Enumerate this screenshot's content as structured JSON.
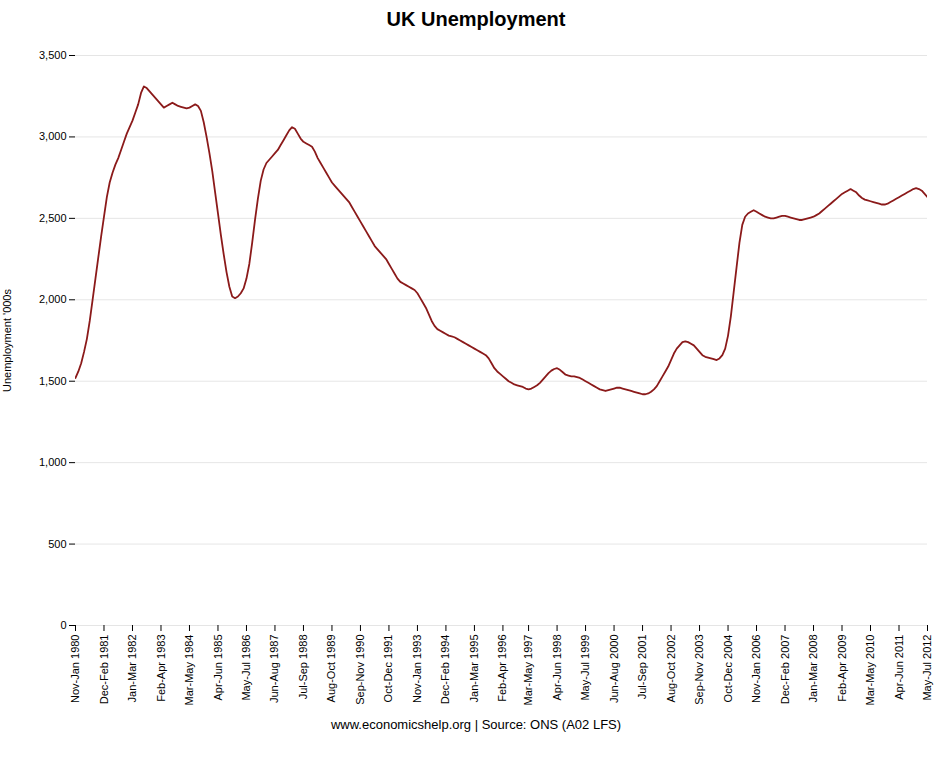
{
  "chart_data": {
    "type": "line",
    "title": "UK Unemployment",
    "ylabel": "Unemployment '000s",
    "caption": "www.economicshelp.org | Source: ONS (A02 LFS)",
    "color": "#8B1A1A",
    "ylim": [
      0,
      3500
    ],
    "yticks": [
      0,
      500,
      {
        "value": 1000,
        "label": "1,000"
      },
      {
        "value": 1500,
        "label": "1,500"
      },
      {
        "value": 2000,
        "label": "2,000"
      },
      {
        "value": 2500,
        "label": "2,500"
      },
      {
        "value": 3000,
        "label": "3,000"
      },
      {
        "value": 3500,
        "label": "3,500"
      }
    ],
    "grid": true,
    "categories": [
      "Nov-Jan 1980",
      null,
      null,
      null,
      null,
      null,
      null,
      null,
      null,
      null,
      "Dec-Feb 1981",
      null,
      null,
      null,
      null,
      null,
      null,
      null,
      null,
      null,
      "Jan-Mar 1982",
      null,
      null,
      null,
      null,
      null,
      null,
      null,
      null,
      null,
      "Feb-Apr 1983",
      null,
      null,
      null,
      null,
      null,
      null,
      null,
      null,
      null,
      "Mar-May 1984",
      null,
      null,
      null,
      null,
      null,
      null,
      null,
      null,
      null,
      "Apr-Jun 1985",
      null,
      null,
      null,
      null,
      null,
      null,
      null,
      null,
      null,
      "May-Jul 1986",
      null,
      null,
      null,
      null,
      null,
      null,
      null,
      null,
      null,
      "Jun-Aug 1987",
      null,
      null,
      null,
      null,
      null,
      null,
      null,
      null,
      null,
      "Jul-Sep 1988",
      null,
      null,
      null,
      null,
      null,
      null,
      null,
      null,
      null,
      "Aug-Oct 1989",
      null,
      null,
      null,
      null,
      null,
      null,
      null,
      null,
      null,
      "Sep-Nov 1990",
      null,
      null,
      null,
      null,
      null,
      null,
      null,
      null,
      null,
      "Oct-Dec 1991",
      null,
      null,
      null,
      null,
      null,
      null,
      null,
      null,
      null,
      "Nov-Jan 1993",
      null,
      null,
      null,
      null,
      null,
      null,
      null,
      null,
      null,
      "Dec-Feb 1994",
      null,
      null,
      null,
      null,
      null,
      null,
      null,
      null,
      null,
      "Jan-Mar 1995",
      null,
      null,
      null,
      null,
      null,
      null,
      null,
      null,
      null,
      "Feb-Apr 1996",
      null,
      null,
      null,
      null,
      null,
      null,
      null,
      null,
      "Mar-May 1997",
      null,
      null,
      null,
      null,
      null,
      null,
      null,
      null,
      null,
      "Apr-Jun 1998",
      null,
      null,
      null,
      null,
      null,
      null,
      null,
      null,
      null,
      "May-Jul 1999",
      null,
      null,
      null,
      null,
      null,
      null,
      null,
      null,
      null,
      "Jun-Aug 2000",
      null,
      null,
      null,
      null,
      null,
      null,
      null,
      null,
      null,
      "Jul-Sep 2001",
      null,
      null,
      null,
      null,
      null,
      null,
      null,
      null,
      null,
      "Aug-Oct 2002",
      null,
      null,
      null,
      null,
      null,
      null,
      null,
      null,
      null,
      "Sep-Nov 2003",
      null,
      null,
      null,
      null,
      null,
      null,
      null,
      null,
      null,
      "Oct-Dec 2004",
      null,
      null,
      null,
      null,
      null,
      null,
      null,
      null,
      null,
      "Nov-Jan 2006",
      null,
      null,
      null,
      null,
      null,
      null,
      null,
      null,
      null,
      "Dec-Feb 2007",
      null,
      null,
      null,
      null,
      null,
      null,
      null,
      null,
      null,
      "Jan-Mar 2008",
      null,
      null,
      null,
      null,
      null,
      null,
      null,
      null,
      null,
      "Feb-Apr 2009",
      null,
      null,
      null,
      null,
      null,
      null,
      null,
      null,
      null,
      "Mar-May 2010",
      null,
      null,
      null,
      null,
      null,
      null,
      null,
      null,
      null,
      "Apr-Jun 2011",
      null,
      null,
      null,
      null,
      null,
      null,
      null,
      null,
      null,
      "May-Jul 2012"
    ],
    "values": [
      1520,
      1560,
      1610,
      1680,
      1760,
      1870,
      2000,
      2130,
      2260,
      2390,
      2510,
      2630,
      2720,
      2780,
      2830,
      2870,
      2920,
      2970,
      3020,
      3060,
      3100,
      3150,
      3200,
      3270,
      3310,
      3300,
      3280,
      3260,
      3240,
      3220,
      3200,
      3180,
      3190,
      3200,
      3210,
      3200,
      3190,
      3185,
      3180,
      3175,
      3180,
      3190,
      3200,
      3190,
      3160,
      3090,
      3000,
      2900,
      2790,
      2660,
      2530,
      2400,
      2280,
      2170,
      2080,
      2020,
      2010,
      2020,
      2040,
      2070,
      2130,
      2220,
      2350,
      2490,
      2620,
      2730,
      2800,
      2840,
      2860,
      2880,
      2900,
      2920,
      2950,
      2980,
      3010,
      3040,
      3060,
      3050,
      3020,
      2990,
      2970,
      2960,
      2950,
      2940,
      2910,
      2870,
      2840,
      2810,
      2780,
      2750,
      2720,
      2700,
      2680,
      2660,
      2640,
      2620,
      2600,
      2570,
      2540,
      2510,
      2480,
      2450,
      2420,
      2390,
      2360,
      2330,
      2310,
      2290,
      2270,
      2250,
      2220,
      2190,
      2160,
      2130,
      2110,
      2100,
      2090,
      2080,
      2070,
      2060,
      2040,
      2010,
      1980,
      1950,
      1910,
      1870,
      1840,
      1820,
      1810,
      1800,
      1790,
      1780,
      1775,
      1770,
      1760,
      1750,
      1740,
      1730,
      1720,
      1710,
      1700,
      1690,
      1680,
      1670,
      1660,
      1640,
      1610,
      1580,
      1560,
      1545,
      1530,
      1515,
      1500,
      1490,
      1480,
      1475,
      1470,
      1465,
      1455,
      1450,
      1455,
      1465,
      1475,
      1490,
      1510,
      1530,
      1550,
      1565,
      1575,
      1580,
      1570,
      1555,
      1540,
      1535,
      1530,
      1530,
      1525,
      1520,
      1510,
      1500,
      1490,
      1480,
      1470,
      1460,
      1450,
      1445,
      1440,
      1445,
      1450,
      1455,
      1460,
      1460,
      1455,
      1450,
      1445,
      1440,
      1435,
      1430,
      1425,
      1420,
      1420,
      1425,
      1435,
      1450,
      1470,
      1500,
      1530,
      1560,
      1590,
      1630,
      1670,
      1700,
      1720,
      1740,
      1745,
      1740,
      1730,
      1720,
      1700,
      1680,
      1660,
      1650,
      1645,
      1640,
      1635,
      1630,
      1640,
      1660,
      1700,
      1780,
      1900,
      2050,
      2200,
      2350,
      2460,
      2510,
      2530,
      2540,
      2550,
      2540,
      2530,
      2520,
      2510,
      2505,
      2500,
      2500,
      2505,
      2510,
      2515,
      2515,
      2510,
      2505,
      2500,
      2495,
      2490,
      2490,
      2495,
      2500,
      2505,
      2510,
      2520,
      2530,
      2545,
      2560,
      2575,
      2590,
      2605,
      2620,
      2635,
      2650,
      2660,
      2670,
      2680,
      2670,
      2660,
      2640,
      2625,
      2615,
      2610,
      2605,
      2600,
      2595,
      2590,
      2585,
      2585,
      2590,
      2600,
      2610,
      2620,
      2630,
      2640,
      2650,
      2660,
      2670,
      2680,
      2685,
      2680,
      2670,
      2650,
      2630
    ]
  }
}
